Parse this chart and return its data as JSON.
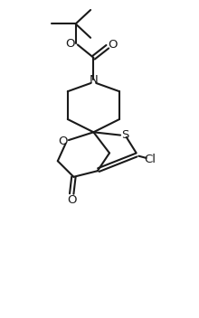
{
  "background_color": "#ffffff",
  "line_color": "#1a1a1a",
  "line_width": 1.5,
  "font_size": 9.5,
  "figsize": [
    2.2,
    3.52
  ],
  "dpi": 100,
  "xlim": [
    0,
    10
  ],
  "ylim": [
    0,
    16
  ]
}
